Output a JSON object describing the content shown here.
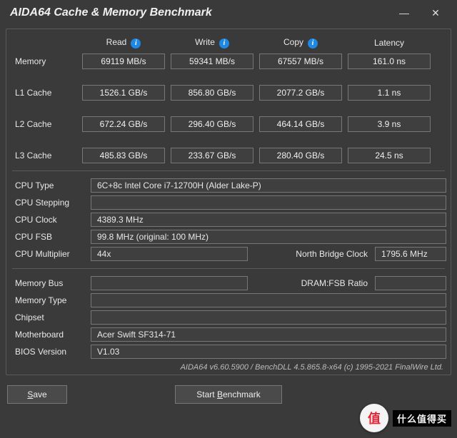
{
  "window": {
    "title": "AIDA64 Cache & Memory Benchmark"
  },
  "headers": {
    "read": "Read",
    "write": "Write",
    "copy": "Copy",
    "latency": "Latency"
  },
  "rows": [
    {
      "label": "Memory",
      "read": "69119 MB/s",
      "write": "59341 MB/s",
      "copy": "67557 MB/s",
      "latency": "161.0 ns"
    },
    {
      "label": "L1 Cache",
      "read": "1526.1 GB/s",
      "write": "856.80 GB/s",
      "copy": "2077.2 GB/s",
      "latency": "1.1 ns"
    },
    {
      "label": "L2 Cache",
      "read": "672.24 GB/s",
      "write": "296.40 GB/s",
      "copy": "464.14 GB/s",
      "latency": "3.9 ns"
    },
    {
      "label": "L3 Cache",
      "read": "485.83 GB/s",
      "write": "233.67 GB/s",
      "copy": "280.40 GB/s",
      "latency": "24.5 ns"
    }
  ],
  "info": {
    "cpu_type_label": "CPU Type",
    "cpu_type": "6C+8c Intel Core i7-12700H  (Alder Lake-P)",
    "cpu_stepping_label": "CPU Stepping",
    "cpu_stepping": "",
    "cpu_clock_label": "CPU Clock",
    "cpu_clock": "4389.3 MHz",
    "cpu_fsb_label": "CPU FSB",
    "cpu_fsb": "99.8 MHz  (original: 100 MHz)",
    "cpu_mult_label": "CPU Multiplier",
    "cpu_mult": "44x",
    "nb_clock_label": "North Bridge Clock",
    "nb_clock": "1795.6 MHz",
    "mem_bus_label": "Memory Bus",
    "mem_bus": "",
    "dram_ratio_label": "DRAM:FSB Ratio",
    "dram_ratio": "",
    "mem_type_label": "Memory Type",
    "mem_type": "",
    "chipset_label": "Chipset",
    "chipset": "",
    "mobo_label": "Motherboard",
    "mobo": "Acer Swift SF314-71",
    "bios_label": "BIOS Version",
    "bios": "V1.03"
  },
  "footer": "AIDA64 v6.60.5900 / BenchDLL 4.5.865.8-x64  (c) 1995-2021 FinalWire Ltd.",
  "buttons": {
    "save": "Save",
    "start": "Start Benchmark"
  },
  "watermark": {
    "badge": "值",
    "text": "什么值得买"
  },
  "colors": {
    "bg": "#3a3a3a",
    "box_border": "#777777",
    "box_bg": "#3f3f3f",
    "text": "#e8e8e8",
    "info_icon": "#1e88e5"
  }
}
